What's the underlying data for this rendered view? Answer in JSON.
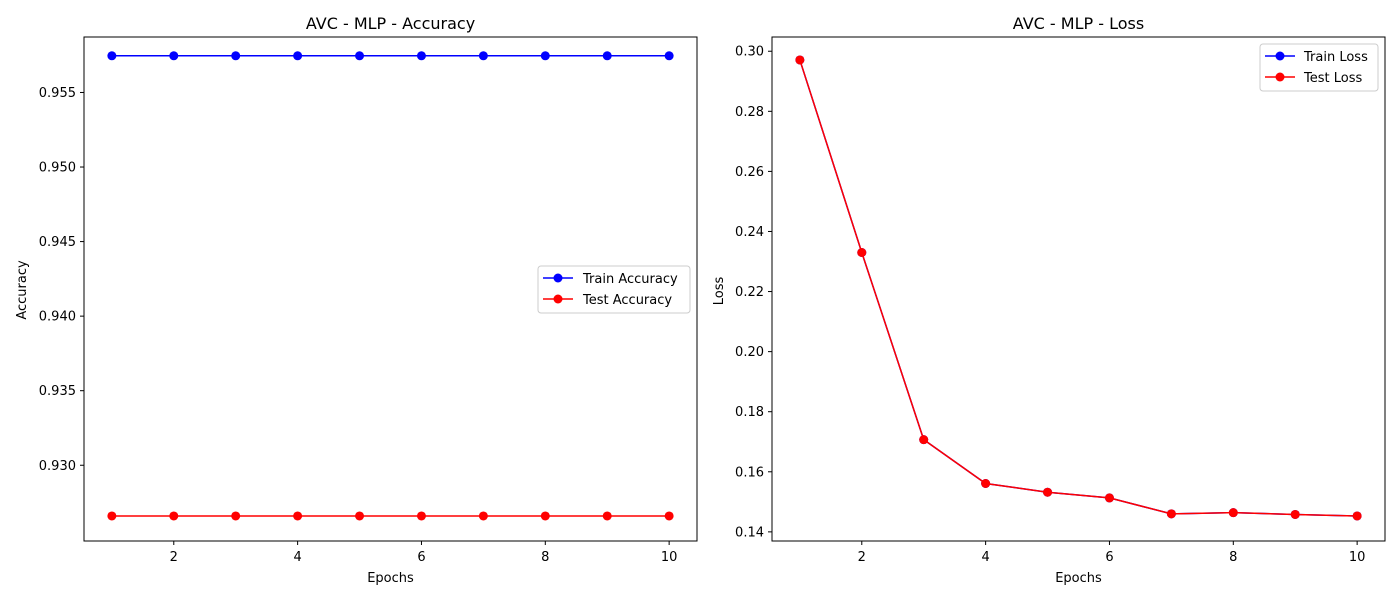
{
  "chart_data": [
    {
      "type": "line",
      "title": "AVC - MLP - Accuracy",
      "xlabel": "Epochs",
      "ylabel": "Accuracy",
      "x": [
        1,
        2,
        3,
        4,
        5,
        6,
        7,
        8,
        9,
        10
      ],
      "xlim": [
        0.55,
        10.45
      ],
      "ylim": [
        0.92492,
        0.95872
      ],
      "xticks": [
        2,
        4,
        6,
        8,
        10
      ],
      "yticks": [
        0.93,
        0.935,
        0.94,
        0.945,
        0.95,
        0.955
      ],
      "ytick_labels": [
        "0.930",
        "0.935",
        "0.940",
        "0.945",
        "0.950",
        "0.955"
      ],
      "grid": false,
      "legend_position": "center-right",
      "series": [
        {
          "name": "Train Accuracy",
          "color": "#0000ff",
          "values": [
            0.95746,
            0.95746,
            0.95746,
            0.95746,
            0.95746,
            0.95746,
            0.95746,
            0.95746,
            0.95746,
            0.95746
          ]
        },
        {
          "name": "Test Accuracy",
          "color": "#ff0000",
          "values": [
            0.9266,
            0.9266,
            0.9266,
            0.9266,
            0.9266,
            0.9266,
            0.9266,
            0.9266,
            0.9266,
            0.9266
          ]
        }
      ]
    },
    {
      "type": "line",
      "title": "AVC - MLP - Loss",
      "xlabel": "Epochs",
      "ylabel": "Loss",
      "x": [
        1,
        2,
        3,
        4,
        5,
        6,
        7,
        8,
        9,
        10
      ],
      "xlim": [
        0.55,
        10.45
      ],
      "ylim": [
        0.13696,
        0.30474
      ],
      "xticks": [
        2,
        4,
        6,
        8,
        10
      ],
      "yticks": [
        0.14,
        0.16,
        0.18,
        0.2,
        0.22,
        0.24,
        0.26,
        0.28,
        0.3
      ],
      "ytick_labels": [
        "0.14",
        "0.16",
        "0.18",
        "0.20",
        "0.22",
        "0.24",
        "0.26",
        "0.28",
        "0.30"
      ],
      "grid": false,
      "legend_position": "top-right",
      "series": [
        {
          "name": "Train Loss",
          "color": "#0000ff",
          "values": [
            0.2971,
            0.233,
            0.1707,
            0.1561,
            0.1532,
            0.1513,
            0.146,
            0.1464,
            0.1458,
            0.1453
          ]
        },
        {
          "name": "Test Loss",
          "color": "#ff0000",
          "values": [
            0.2971,
            0.233,
            0.1707,
            0.1561,
            0.1532,
            0.1513,
            0.146,
            0.1464,
            0.1458,
            0.1453
          ]
        }
      ]
    }
  ]
}
